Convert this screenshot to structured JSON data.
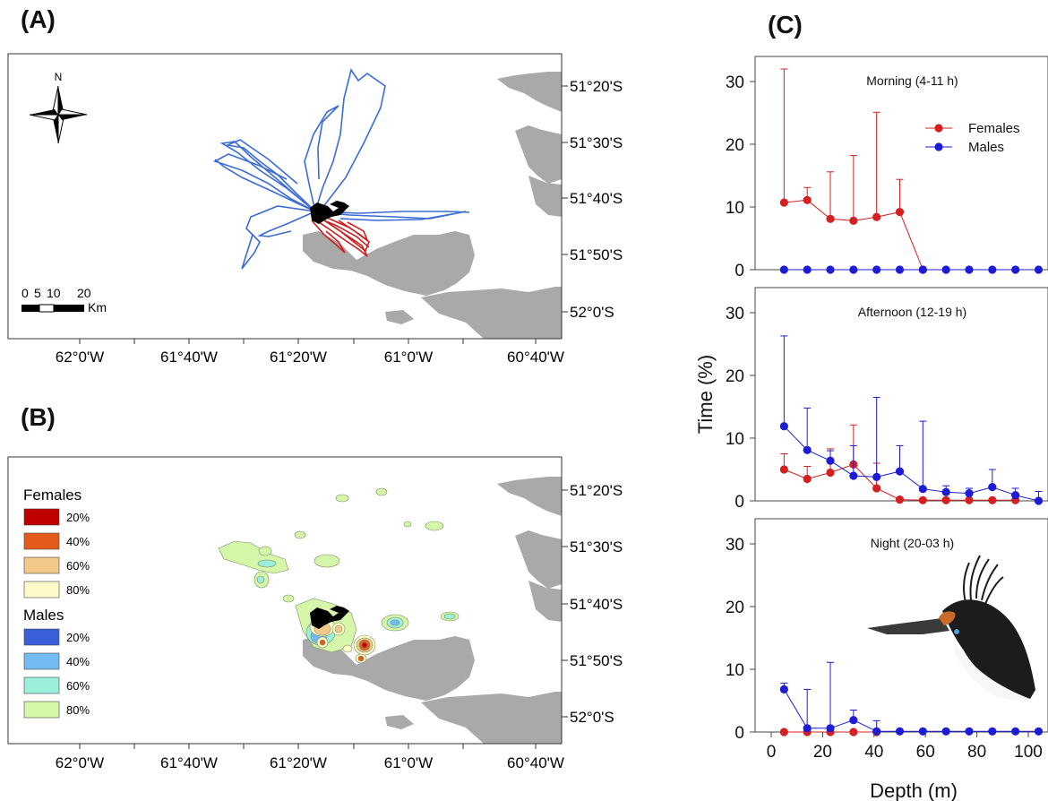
{
  "panels": {
    "a": "(A)",
    "b": "(B)",
    "c": "(C)"
  },
  "maps": {
    "lat_labels": [
      "51°20'S",
      "51°30'S",
      "51°40'S",
      "51°50'S",
      "52°0'S"
    ],
    "lon_labels": [
      "62°0'W",
      "61°40'W",
      "61°20'W",
      "61°0'W",
      "60°40'W"
    ],
    "north_label": "N",
    "scale_ticks": [
      "0",
      "5",
      "10",
      "20"
    ],
    "scale_unit": "Km",
    "colors": {
      "land": "#a9a9a9",
      "male_track": "#3b6bd6",
      "female_track": "#cc1f1f",
      "colony": "#000000"
    }
  },
  "legend": {
    "females_title": "Females",
    "males_title": "Males",
    "females": [
      {
        "label": "20%",
        "color": "#c00000"
      },
      {
        "label": "40%",
        "color": "#e35a1a"
      },
      {
        "label": "60%",
        "color": "#f3c98a"
      },
      {
        "label": "80%",
        "color": "#fffac8"
      }
    ],
    "males": [
      {
        "label": "20%",
        "color": "#3a5fd8"
      },
      {
        "label": "40%",
        "color": "#74baf2"
      },
      {
        "label": "60%",
        "color": "#9af0da"
      },
      {
        "label": "80%",
        "color": "#d6f7a9"
      }
    ]
  },
  "chart_data": {
    "type": "line",
    "xlabel": "Depth (m)",
    "ylabel": "Time (%)",
    "xlim": [
      0,
      105
    ],
    "ylim": [
      0,
      34
    ],
    "x_ticks": [
      0,
      20,
      40,
      60,
      80,
      100
    ],
    "y_ticks": [
      0,
      10,
      20,
      30
    ],
    "legend_entries": [
      "Females",
      "Males"
    ],
    "legend_position": "top-right (morning panel)",
    "colors": {
      "Females": "#d42020",
      "Males": "#1c1cd6"
    },
    "x": [
      5,
      14,
      23,
      32,
      41,
      50,
      59,
      68,
      77,
      86,
      95,
      104
    ],
    "subplots": [
      {
        "title": "Morning (4-11 h)",
        "series": [
          {
            "name": "Females",
            "x": [
              5,
              14,
              23,
              32,
              41,
              50,
              59
            ],
            "values": [
              10.7,
              11.1,
              8.1,
              7.8,
              8.4,
              9.2,
              0
            ],
            "err_up": [
              32,
              13.1,
              15.6,
              18.2,
              25.1,
              14.4,
              0
            ]
          },
          {
            "name": "Males",
            "x": [
              5,
              14,
              23,
              32,
              41,
              50,
              59,
              68,
              77,
              86,
              95,
              104
            ],
            "values": [
              0,
              0,
              0,
              0,
              0,
              0,
              0,
              0,
              0,
              0,
              0,
              0
            ],
            "err_up": [
              0,
              0,
              0,
              0,
              0,
              0,
              0,
              0,
              0,
              0,
              0,
              0
            ]
          }
        ]
      },
      {
        "title": "Afternoon (12-19 h)",
        "series": [
          {
            "name": "Females",
            "x": [
              5,
              14,
              23,
              32,
              41,
              50,
              59,
              68,
              77,
              86,
              95
            ],
            "values": [
              5.0,
              3.5,
              4.5,
              5.8,
              2.0,
              0.2,
              0.1,
              0.1,
              0.1,
              0.1,
              0.1
            ],
            "err_up": [
              7.5,
              5.5,
              8.3,
              12.1,
              6.0,
              0.2,
              0.1,
              0.1,
              0.1,
              0.1,
              0.1
            ]
          },
          {
            "name": "Males",
            "x": [
              5,
              14,
              23,
              32,
              41,
              50,
              59,
              68,
              77,
              86,
              95,
              104
            ],
            "values": [
              11.9,
              8.1,
              6.4,
              4.0,
              3.8,
              4.7,
              1.9,
              1.4,
              1.2,
              2.2,
              0.9,
              0.0
            ],
            "err_up": [
              26.3,
              14.8,
              8.0,
              8.8,
              16.5,
              8.8,
              12.7,
              2.4,
              2.0,
              5.0,
              2.0,
              1.5
            ]
          }
        ]
      },
      {
        "title": "Night (20-03 h)",
        "series": [
          {
            "name": "Females",
            "x": [
              5,
              14,
              23,
              32,
              41
            ],
            "values": [
              0,
              0,
              0,
              0,
              0
            ],
            "err_up": [
              0,
              0,
              0,
              0,
              0
            ]
          },
          {
            "name": "Males",
            "x": [
              5,
              14,
              23,
              32,
              41,
              50,
              59,
              68,
              77,
              86,
              95,
              104
            ],
            "values": [
              6.8,
              0.6,
              0.6,
              1.9,
              0.1,
              0.1,
              0.1,
              0.1,
              0.1,
              0.1,
              0.1,
              0.1
            ],
            "err_up": [
              7.8,
              6.8,
              11.1,
              3.5,
              1.8,
              0.1,
              0.1,
              0.1,
              0.1,
              0.1,
              0.1,
              0.1
            ]
          }
        ]
      }
    ]
  }
}
